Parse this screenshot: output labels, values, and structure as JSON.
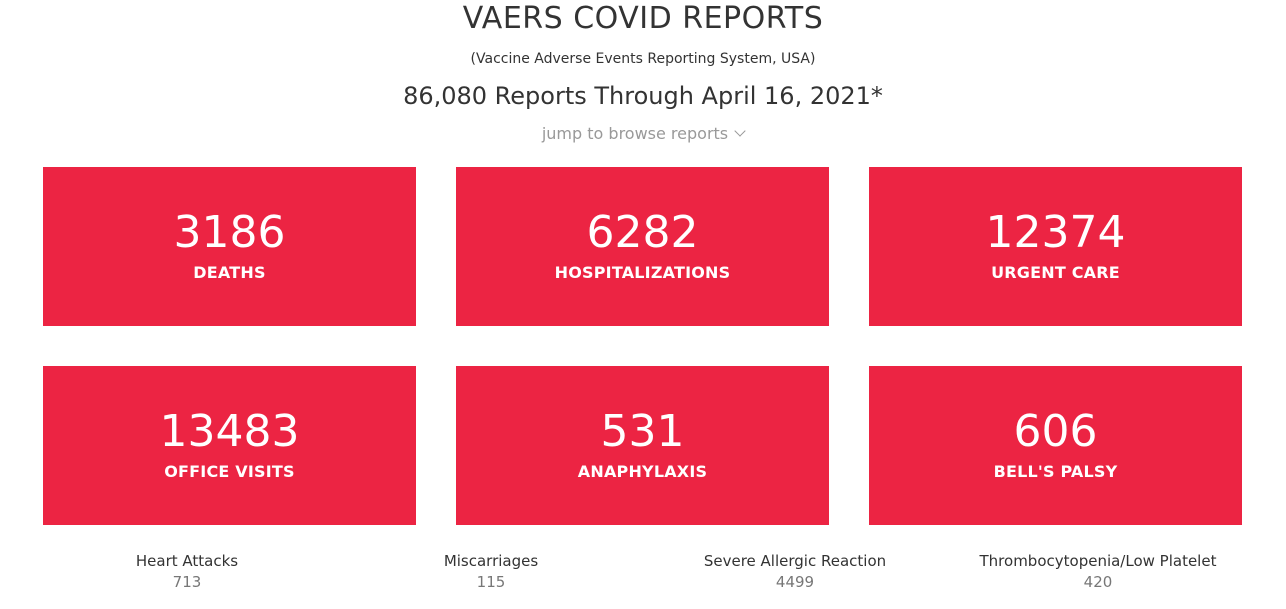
{
  "header": {
    "title": "VAERS COVID REPORTS",
    "subtitle": "(Vaccine Adverse Events Reporting System, USA)",
    "reports_line": "86,080 Reports Through April 16, 2021*",
    "jump_link": "jump to browse reports"
  },
  "colors": {
    "card_background": "#ec2443",
    "card_text": "#ffffff",
    "text": "#333333",
    "muted_text": "#999999"
  },
  "cards": [
    {
      "value": "3186",
      "label": "DEATHS"
    },
    {
      "value": "6282",
      "label": "HOSPITALIZATIONS"
    },
    {
      "value": "12374",
      "label": "URGENT CARE"
    },
    {
      "value": "13483",
      "label": "OFFICE VISITS"
    },
    {
      "value": "531",
      "label": "ANAPHYLAXIS"
    },
    {
      "value": "606",
      "label": "BELL'S PALSY"
    }
  ],
  "stats": [
    {
      "label": "Heart Attacks",
      "value": "713"
    },
    {
      "label": "Miscarriages",
      "value": "115"
    },
    {
      "label": "Severe Allergic Reaction",
      "value": "4499"
    },
    {
      "label": "Thrombocytopenia/Low Platelet",
      "value": "420"
    }
  ],
  "icons": {
    "jump_link_icon": "chevron-down-icon"
  }
}
